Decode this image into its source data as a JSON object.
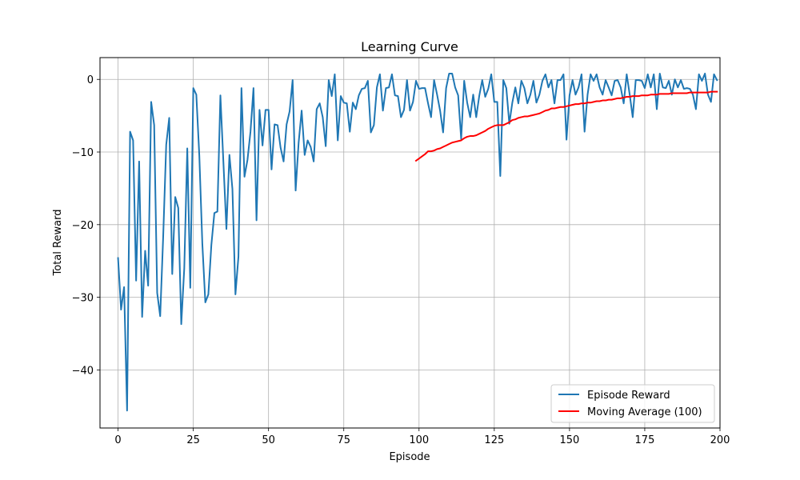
{
  "chart_data": {
    "type": "line",
    "title": "Learning Curve",
    "xlabel": "Episode",
    "ylabel": "Total Reward",
    "xlim": [
      -6,
      200
    ],
    "ylim": [
      -48,
      3
    ],
    "xticks": [
      0,
      25,
      50,
      75,
      100,
      125,
      150,
      175,
      200
    ],
    "yticks": [
      0,
      -10,
      -20,
      -30,
      -40
    ],
    "grid": true,
    "legend": "lower-right",
    "series": [
      {
        "name": "Episode Reward",
        "color": "#1f77b4",
        "x_start": 0,
        "values": [
          -24.6,
          -31.7,
          -28.6,
          -45.6,
          -7.2,
          -8.4,
          -27.7,
          -11.3,
          -32.7,
          -23.6,
          -28.4,
          -3.1,
          -6.3,
          -29.4,
          -32.6,
          -21.6,
          -9.0,
          -5.3,
          -26.8,
          -16.2,
          -17.7,
          -33.7,
          -26.0,
          -9.5,
          -28.7,
          -1.2,
          -2.1,
          -10.5,
          -22.6,
          -30.7,
          -29.6,
          -22.8,
          -18.4,
          -18.2,
          -2.2,
          -11.4,
          -20.6,
          -10.4,
          -15.1,
          -29.6,
          -24.4,
          -1.2,
          -13.4,
          -11.1,
          -7.2,
          -1.2,
          -19.4,
          -4.2,
          -9.1,
          -4.2,
          -4.2,
          -12.4,
          -6.2,
          -6.3,
          -9.4,
          -11.3,
          -6.2,
          -4.4,
          -0.1,
          -15.3,
          -8.7,
          -4.3,
          -10.4,
          -8.4,
          -9.3,
          -11.3,
          -4.1,
          -3.3,
          -5.2,
          -9.2,
          -0.1,
          -2.3,
          0.7,
          -8.4,
          -2.3,
          -3.2,
          -3.3,
          -7.2,
          -3.2,
          -4.1,
          -2.2,
          -1.3,
          -1.2,
          -0.2,
          -7.3,
          -6.3,
          -1.1,
          0.7,
          -4.3,
          -1.2,
          -1.1,
          0.7,
          -2.2,
          -2.3,
          -5.2,
          -4.2,
          -0.1,
          -4.3,
          -3.1,
          -0.2,
          -1.3,
          -1.2,
          -1.2,
          -3.3,
          -5.2,
          -0.1,
          -2.1,
          -4.3,
          -7.3,
          -1.2,
          0.8,
          0.8,
          -1.1,
          -2.2,
          -8.2,
          -0.2,
          -3.2,
          -5.2,
          -2.1,
          -5.2,
          -2.3,
          -0.1,
          -2.4,
          -1.3,
          0.7,
          -3.1,
          -3.1,
          -13.3,
          -0.1,
          -1.2,
          -6.1,
          -3.2,
          -1.1,
          -3.3,
          -0.2,
          -1.2,
          -3.3,
          -2.1,
          -0.2,
          -3.2,
          -2.1,
          -0.2,
          0.7,
          -1.1,
          -0.1,
          -3.3,
          -0.1,
          -0.1,
          0.7,
          -8.3,
          -2.2,
          -0.1,
          -2.1,
          -1.1,
          0.7,
          -7.2,
          -2.1,
          0.7,
          -0.2,
          0.7,
          -1.1,
          -2.1,
          -0.1,
          -1.1,
          -2.2,
          -0.2,
          -0.1,
          -1.1,
          -3.3,
          0.7,
          -2.1,
          -5.2,
          -0.1,
          -0.1,
          -0.2,
          -1.2,
          0.7,
          -1.1,
          0.7,
          -4.1,
          0.8,
          -1.1,
          -1.2,
          -0.2,
          -2.1,
          0.0,
          -1.1,
          -0.1,
          -1.3,
          -1.2,
          -1.3,
          -2.1,
          -4.1,
          0.7,
          -0.2,
          0.8,
          -2.1,
          -3.1,
          0.7,
          -0.1
        ]
      },
      {
        "name": "Moving Average (100)",
        "color": "#ff0000",
        "x_start": 99,
        "values": [
          -11.2,
          -10.9,
          -10.6,
          -10.3,
          -9.9,
          -9.9,
          -9.8,
          -9.6,
          -9.5,
          -9.3,
          -9.1,
          -8.9,
          -8.7,
          -8.6,
          -8.5,
          -8.4,
          -8.1,
          -7.9,
          -7.8,
          -7.8,
          -7.7,
          -7.5,
          -7.3,
          -7.1,
          -6.8,
          -6.6,
          -6.4,
          -6.3,
          -6.3,
          -6.3,
          -6.1,
          -5.9,
          -5.6,
          -5.5,
          -5.3,
          -5.2,
          -5.1,
          -5.1,
          -5.0,
          -4.9,
          -4.8,
          -4.7,
          -4.5,
          -4.3,
          -4.2,
          -4.0,
          -4.0,
          -3.9,
          -3.8,
          -3.8,
          -3.7,
          -3.6,
          -3.5,
          -3.4,
          -3.4,
          -3.3,
          -3.3,
          -3.2,
          -3.2,
          -3.1,
          -3.0,
          -3.0,
          -2.9,
          -2.9,
          -2.8,
          -2.8,
          -2.7,
          -2.6,
          -2.6,
          -2.5,
          -2.4,
          -2.4,
          -2.3,
          -2.3,
          -2.3,
          -2.2,
          -2.2,
          -2.2,
          -2.1,
          -2.1,
          -2.1,
          -2.0,
          -2.0,
          -2.0,
          -2.0,
          -1.9,
          -1.9,
          -1.9,
          -1.9,
          -1.9,
          -1.9,
          -1.8,
          -1.8,
          -1.8,
          -1.8,
          -1.8,
          -1.8,
          -1.8,
          -1.7,
          -1.7,
          -1.7
        ]
      }
    ]
  }
}
